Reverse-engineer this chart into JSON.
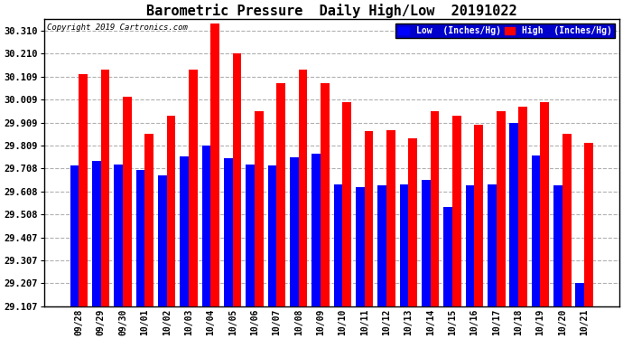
{
  "title": "Barometric Pressure  Daily High/Low  20191022",
  "copyright": "Copyright 2019 Cartronics.com",
  "ylim": [
    29.107,
    30.36
  ],
  "yticks": [
    29.107,
    29.207,
    29.307,
    29.407,
    29.508,
    29.608,
    29.708,
    29.809,
    29.909,
    30.009,
    30.109,
    30.21,
    30.31
  ],
  "categories": [
    "09/28",
    "09/29",
    "09/30",
    "10/01",
    "10/02",
    "10/03",
    "10/04",
    "10/05",
    "10/06",
    "10/07",
    "10/08",
    "10/09",
    "10/10",
    "10/11",
    "10/12",
    "10/13",
    "10/14",
    "10/15",
    "10/16",
    "10/17",
    "10/18",
    "10/19",
    "10/20",
    "10/21"
  ],
  "low_values": [
    29.72,
    29.74,
    29.726,
    29.7,
    29.68,
    29.76,
    29.81,
    29.754,
    29.726,
    29.72,
    29.756,
    29.772,
    29.64,
    29.628,
    29.634,
    29.64,
    29.658,
    29.54,
    29.636,
    29.637,
    29.908,
    29.766,
    29.636,
    29.207
  ],
  "high_values": [
    30.12,
    30.14,
    30.02,
    29.86,
    29.94,
    30.14,
    30.34,
    30.21,
    29.96,
    30.08,
    30.14,
    30.08,
    30.0,
    29.87,
    29.876,
    29.84,
    29.96,
    29.94,
    29.9,
    29.96,
    29.98,
    30.0,
    29.86,
    29.82
  ],
  "low_color": "#0000ff",
  "high_color": "#ff0000",
  "bg_color": "#ffffff",
  "grid_color": "#b0b0b0",
  "title_fontsize": 11,
  "legend_low_label": "Low  (Inches/Hg)",
  "legend_high_label": "High  (Inches/Hg)",
  "bar_width": 0.4
}
